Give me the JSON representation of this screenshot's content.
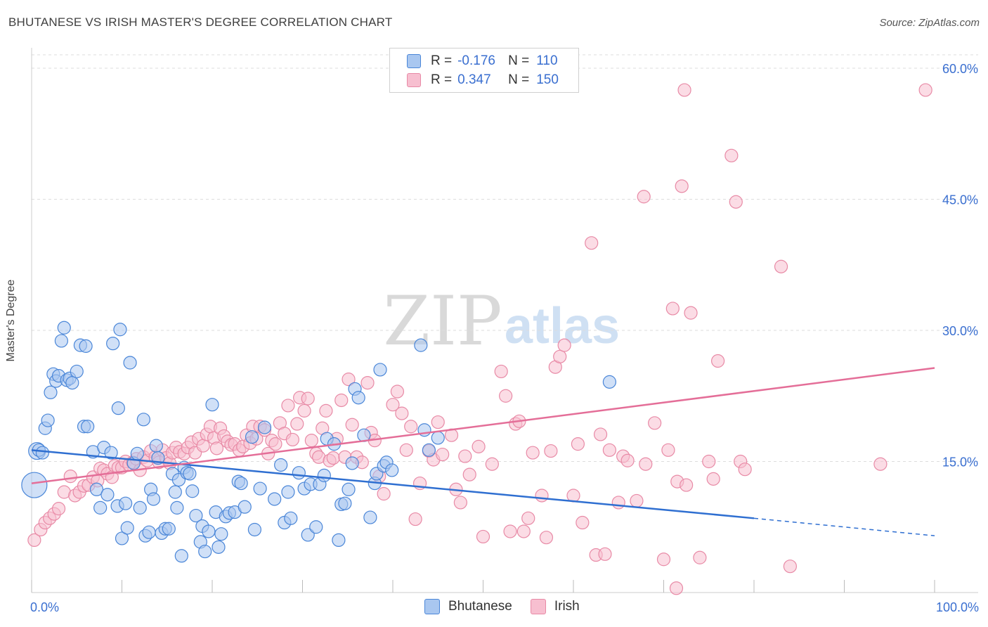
{
  "title": "BHUTANESE VS IRISH MASTER'S DEGREE CORRELATION CHART",
  "source": "Source: ZipAtlas.com",
  "watermark": {
    "zip": "ZIP",
    "atlas": "atlas"
  },
  "legend": {
    "rows": [
      {
        "r_label": "R =",
        "r_value": "-0.176",
        "n_label": "N =",
        "n_value": "110"
      },
      {
        "r_label": "R =",
        "r_value": "0.347",
        "n_label": "N =",
        "n_value": "150"
      }
    ]
  },
  "colors": {
    "blue_fill": "#a9c7f0",
    "blue_stroke": "#4a86d8",
    "blue_line": "#2f6fd1",
    "pink_fill": "#f7bfd0",
    "pink_stroke": "#e88aa6",
    "pink_line": "#e46e98",
    "grid": "#dddddd",
    "axis_text": "#3a6fd0"
  },
  "chart_data": {
    "type": "scatter",
    "title": "BHUTANESE VS IRISH MASTER'S DEGREE CORRELATION CHART",
    "xlabel": "",
    "ylabel": "Master's Degree",
    "xlim": [
      0,
      100
    ],
    "ylim": [
      0,
      60
    ],
    "x_tick_labels": [
      "0.0%",
      "100.0%"
    ],
    "y_ticks": [
      15,
      30,
      45,
      60
    ],
    "y_tick_labels": [
      "15.0%",
      "30.0%",
      "45.0%",
      "60.0%"
    ],
    "grid": true,
    "legend_position": "top-center",
    "series": [
      {
        "name": "Bhutanese",
        "r": -0.176,
        "n": 110,
        "trend": {
          "x0": 0,
          "y0": 16.3,
          "x1": 80,
          "y1": 8.5,
          "dash_to_x": 100,
          "dash_to_y": 6.5
        },
        "points": [
          [
            0.3,
            12.3
          ],
          [
            0.6,
            16.2
          ],
          [
            0.8,
            16.3
          ],
          [
            1.2,
            16.0
          ],
          [
            1.5,
            18.8
          ],
          [
            1.8,
            19.7
          ],
          [
            2.1,
            22.9
          ],
          [
            2.4,
            25.0
          ],
          [
            2.7,
            24.2
          ],
          [
            3.0,
            24.8
          ],
          [
            3.3,
            28.8
          ],
          [
            3.6,
            30.3
          ],
          [
            3.9,
            24.3
          ],
          [
            4.2,
            24.5
          ],
          [
            4.5,
            24.0
          ],
          [
            5.0,
            25.3
          ],
          [
            5.4,
            28.3
          ],
          [
            5.8,
            19.0
          ],
          [
            6.2,
            19.0
          ],
          [
            6.8,
            16.1
          ],
          [
            7.2,
            11.8
          ],
          [
            7.6,
            9.7
          ],
          [
            8.0,
            16.6
          ],
          [
            8.4,
            11.2
          ],
          [
            8.8,
            16.0
          ],
          [
            9.0,
            28.5
          ],
          [
            9.5,
            9.9
          ],
          [
            9.6,
            21.1
          ],
          [
            9.8,
            30.1
          ],
          [
            10.0,
            6.2
          ],
          [
            10.4,
            10.2
          ],
          [
            10.6,
            7.4
          ],
          [
            10.9,
            26.3
          ],
          [
            11.3,
            14.8
          ],
          [
            11.7,
            15.9
          ],
          [
            12.0,
            9.7
          ],
          [
            12.4,
            19.8
          ],
          [
            12.6,
            6.5
          ],
          [
            13.0,
            6.9
          ],
          [
            13.2,
            11.8
          ],
          [
            13.5,
            10.7
          ],
          [
            13.8,
            16.8
          ],
          [
            14.0,
            15.4
          ],
          [
            14.4,
            6.8
          ],
          [
            14.8,
            7.3
          ],
          [
            15.2,
            7.3
          ],
          [
            15.6,
            13.6
          ],
          [
            15.9,
            11.5
          ],
          [
            16.1,
            9.7
          ],
          [
            16.3,
            12.9
          ],
          [
            16.6,
            4.2
          ],
          [
            16.9,
            14.3
          ],
          [
            17.2,
            13.7
          ],
          [
            17.5,
            13.6
          ],
          [
            17.8,
            11.6
          ],
          [
            18.2,
            8.8
          ],
          [
            18.7,
            5.8
          ],
          [
            18.9,
            7.6
          ],
          [
            19.2,
            4.7
          ],
          [
            19.6,
            7.0
          ],
          [
            20.0,
            21.5
          ],
          [
            20.4,
            9.2
          ],
          [
            20.7,
            5.2
          ],
          [
            21.0,
            6.7
          ],
          [
            21.5,
            8.7
          ],
          [
            21.9,
            9.1
          ],
          [
            22.5,
            9.2
          ],
          [
            22.9,
            12.7
          ],
          [
            23.2,
            12.5
          ],
          [
            23.6,
            9.8
          ],
          [
            24.4,
            17.8
          ],
          [
            24.7,
            7.2
          ],
          [
            25.3,
            11.9
          ],
          [
            25.8,
            18.9
          ],
          [
            26.9,
            10.7
          ],
          [
            27.6,
            14.6
          ],
          [
            28.0,
            8.0
          ],
          [
            28.4,
            11.5
          ],
          [
            28.7,
            8.5
          ],
          [
            29.6,
            13.7
          ],
          [
            30.2,
            11.9
          ],
          [
            30.6,
            6.6
          ],
          [
            30.9,
            12.4
          ],
          [
            31.5,
            7.5
          ],
          [
            31.9,
            12.4
          ],
          [
            32.4,
            13.4
          ],
          [
            32.7,
            17.6
          ],
          [
            33.5,
            17.0
          ],
          [
            34.0,
            6.0
          ],
          [
            34.3,
            10.1
          ],
          [
            34.7,
            10.2
          ],
          [
            35.1,
            11.8
          ],
          [
            35.5,
            14.8
          ],
          [
            35.8,
            23.3
          ],
          [
            36.2,
            22.3
          ],
          [
            36.8,
            18.0
          ],
          [
            37.5,
            8.6
          ],
          [
            38.0,
            12.5
          ],
          [
            38.2,
            13.6
          ],
          [
            38.6,
            25.5
          ],
          [
            39.0,
            14.5
          ],
          [
            39.3,
            14.9
          ],
          [
            39.9,
            14.0
          ],
          [
            43.1,
            28.3
          ],
          [
            43.5,
            18.6
          ],
          [
            44.0,
            16.3
          ],
          [
            45.0,
            17.7
          ],
          [
            64.0,
            24.1
          ],
          [
            6.0,
            28.2
          ]
        ],
        "sizes": [
          [
            0.3,
            2
          ]
        ]
      },
      {
        "name": "Irish",
        "r": 0.347,
        "n": 150,
        "trend": {
          "x0": 0,
          "y0": 12.5,
          "x1": 100,
          "y1": 25.7
        },
        "points": [
          [
            0.3,
            6.0
          ],
          [
            1.0,
            7.2
          ],
          [
            1.5,
            8.0
          ],
          [
            2.0,
            8.5
          ],
          [
            2.5,
            9.0
          ],
          [
            3.0,
            9.6
          ],
          [
            3.6,
            11.5
          ],
          [
            4.3,
            13.3
          ],
          [
            4.8,
            11.1
          ],
          [
            5.3,
            11.5
          ],
          [
            5.8,
            12.2
          ],
          [
            6.3,
            12.3
          ],
          [
            6.8,
            13.2
          ],
          [
            7.3,
            12.8
          ],
          [
            7.6,
            14.2
          ],
          [
            8.0,
            14.0
          ],
          [
            8.4,
            13.6
          ],
          [
            8.9,
            13.2
          ],
          [
            9.2,
            14.5
          ],
          [
            9.6,
            14.3
          ],
          [
            10.0,
            14.3
          ],
          [
            10.4,
            15.0
          ],
          [
            10.8,
            14.6
          ],
          [
            11.2,
            14.9
          ],
          [
            11.6,
            15.3
          ],
          [
            12.0,
            14.0
          ],
          [
            12.4,
            15.5
          ],
          [
            12.8,
            15.1
          ],
          [
            13.2,
            16.2
          ],
          [
            13.7,
            15.5
          ],
          [
            14.1,
            14.9
          ],
          [
            14.5,
            16.3
          ],
          [
            14.9,
            15.4
          ],
          [
            15.3,
            14.8
          ],
          [
            15.6,
            16.0
          ],
          [
            16.0,
            16.6
          ],
          [
            16.4,
            16.1
          ],
          [
            16.9,
            15.9
          ],
          [
            17.3,
            16.6
          ],
          [
            17.7,
            17.2
          ],
          [
            18.1,
            16.0
          ],
          [
            18.5,
            17.6
          ],
          [
            19.0,
            16.8
          ],
          [
            19.4,
            18.1
          ],
          [
            19.8,
            19.0
          ],
          [
            20.2,
            17.7
          ],
          [
            20.5,
            16.5
          ],
          [
            20.9,
            18.8
          ],
          [
            21.3,
            17.9
          ],
          [
            21.7,
            17.3
          ],
          [
            22.1,
            16.9
          ],
          [
            22.5,
            17.0
          ],
          [
            23.0,
            16.3
          ],
          [
            23.4,
            16.7
          ],
          [
            23.8,
            18.0
          ],
          [
            24.2,
            17.1
          ],
          [
            24.5,
            19.0
          ],
          [
            24.9,
            17.6
          ],
          [
            25.3,
            19.0
          ],
          [
            25.8,
            18.6
          ],
          [
            26.2,
            15.9
          ],
          [
            26.6,
            17.4
          ],
          [
            27.0,
            17.0
          ],
          [
            27.5,
            19.4
          ],
          [
            28.0,
            18.2
          ],
          [
            28.4,
            21.4
          ],
          [
            28.9,
            17.5
          ],
          [
            29.4,
            19.3
          ],
          [
            29.7,
            22.3
          ],
          [
            30.2,
            20.8
          ],
          [
            30.6,
            22.2
          ],
          [
            31.0,
            17.4
          ],
          [
            31.5,
            15.9
          ],
          [
            31.8,
            15.5
          ],
          [
            32.2,
            18.8
          ],
          [
            32.6,
            20.8
          ],
          [
            33.0,
            15.1
          ],
          [
            33.4,
            15.4
          ],
          [
            33.8,
            17.6
          ],
          [
            34.3,
            22.0
          ],
          [
            34.7,
            15.5
          ],
          [
            35.1,
            24.4
          ],
          [
            35.5,
            19.2
          ],
          [
            36.0,
            15.5
          ],
          [
            36.6,
            14.9
          ],
          [
            37.2,
            24.0
          ],
          [
            37.6,
            18.3
          ],
          [
            38.0,
            17.4
          ],
          [
            38.5,
            13.3
          ],
          [
            39.0,
            11.3
          ],
          [
            40.0,
            21.5
          ],
          [
            40.5,
            23.0
          ],
          [
            41.0,
            20.5
          ],
          [
            41.5,
            16.3
          ],
          [
            42.0,
            19.0
          ],
          [
            42.5,
            8.4
          ],
          [
            43.0,
            12.5
          ],
          [
            44.0,
            16.2
          ],
          [
            44.5,
            15.2
          ],
          [
            45.0,
            19.5
          ],
          [
            45.5,
            15.8
          ],
          [
            46.5,
            18.0
          ],
          [
            47.0,
            11.8
          ],
          [
            47.5,
            10.3
          ],
          [
            48.0,
            15.6
          ],
          [
            48.5,
            13.5
          ],
          [
            49.5,
            16.7
          ],
          [
            50.0,
            6.4
          ],
          [
            51.0,
            14.7
          ],
          [
            52.0,
            25.3
          ],
          [
            52.5,
            22.5
          ],
          [
            53.0,
            7.0
          ],
          [
            53.6,
            19.3
          ],
          [
            54.0,
            19.6
          ],
          [
            54.5,
            7.0
          ],
          [
            55.0,
            8.5
          ],
          [
            55.5,
            16.0
          ],
          [
            56.5,
            11.1
          ],
          [
            57.0,
            6.3
          ],
          [
            57.5,
            16.2
          ],
          [
            58.0,
            25.8
          ],
          [
            58.5,
            27.0
          ],
          [
            59.0,
            28.3
          ],
          [
            60.0,
            11.1
          ],
          [
            60.5,
            17.0
          ],
          [
            61.0,
            8.0
          ],
          [
            62.0,
            40.0
          ],
          [
            62.5,
            4.3
          ],
          [
            63.0,
            18.1
          ],
          [
            63.5,
            4.4
          ],
          [
            64.0,
            16.3
          ],
          [
            65.0,
            10.3
          ],
          [
            65.5,
            15.6
          ],
          [
            66.0,
            15.1
          ],
          [
            67.0,
            10.5
          ],
          [
            67.8,
            45.3
          ],
          [
            68.0,
            14.7
          ],
          [
            69.0,
            19.4
          ],
          [
            70.0,
            3.8
          ],
          [
            70.5,
            16.3
          ],
          [
            71.0,
            32.5
          ],
          [
            71.5,
            12.7
          ],
          [
            72.0,
            46.5
          ],
          [
            72.5,
            12.3
          ],
          [
            73.0,
            32.0
          ],
          [
            74.0,
            4.0
          ],
          [
            75.0,
            15.0
          ],
          [
            75.5,
            13.0
          ],
          [
            76.0,
            26.5
          ],
          [
            77.5,
            50.0
          ],
          [
            78.0,
            44.7
          ],
          [
            78.5,
            15.0
          ],
          [
            79.0,
            14.1
          ],
          [
            83.0,
            37.3
          ],
          [
            84.0,
            3.0
          ],
          [
            94.0,
            14.7
          ],
          [
            99.0,
            57.5
          ],
          [
            72.3,
            57.5
          ],
          [
            71.4,
            0.5
          ]
        ]
      }
    ]
  }
}
